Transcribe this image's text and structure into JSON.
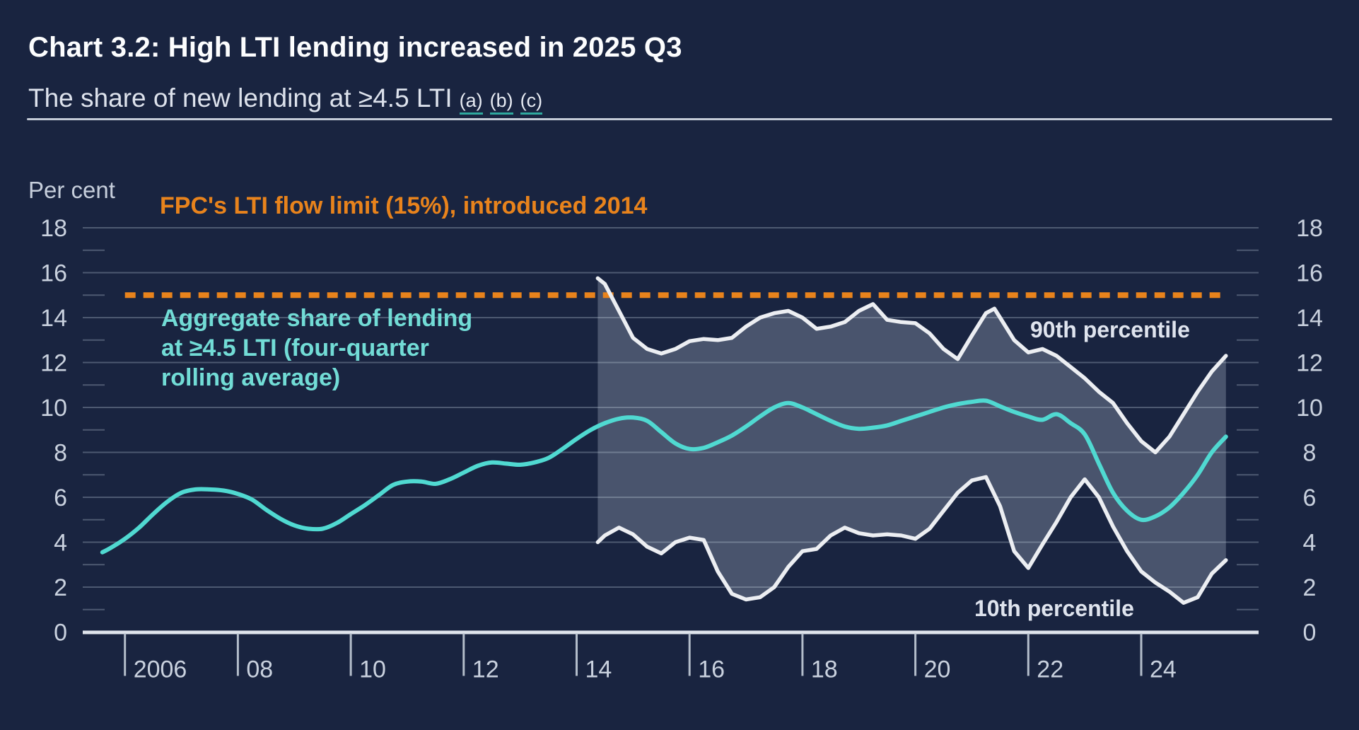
{
  "page": {
    "background": "#192440"
  },
  "header": {
    "title": "Chart 3.2: High LTI lending increased in 2025 Q3",
    "subtitle": "The share of new lending at ≥4.5 LTI",
    "footnotes": [
      {
        "label": "(a)"
      },
      {
        "label": "(b)"
      },
      {
        "label": "(c)"
      }
    ]
  },
  "chart_data": {
    "type": "line",
    "unit_label": "Per cent",
    "ylim": [
      0,
      18
    ],
    "y_ticks": [
      0,
      2,
      4,
      6,
      8,
      10,
      12,
      14,
      16,
      18
    ],
    "y_minor_ticks": [
      1,
      3,
      5,
      7,
      9,
      11,
      13,
      15,
      17
    ],
    "x_ticks": [
      {
        "year": 2006,
        "label": "2006"
      },
      {
        "year": 2008,
        "label": "08"
      },
      {
        "year": 2010,
        "label": "10"
      },
      {
        "year": 2012,
        "label": "12"
      },
      {
        "year": 2014,
        "label": "14"
      },
      {
        "year": 2016,
        "label": "16"
      },
      {
        "year": 2018,
        "label": "18"
      },
      {
        "year": 2020,
        "label": "20"
      },
      {
        "year": 2022,
        "label": "22"
      },
      {
        "year": 2024,
        "label": "24"
      }
    ],
    "x_range": [
      2005.25,
      2026.1
    ],
    "grid": true,
    "legend_position": "annotations-on-chart",
    "colors": {
      "background": "#192440",
      "gridline": "#4d5971",
      "baseline": "#dfe4ec",
      "tick": "#b3bdca",
      "axis_text": "#c9d1de",
      "band_fill": "rgba(214,224,240,0.26)",
      "aggregate": "#50d9d1",
      "percentile": "#eceef2",
      "limit": "#e8831c"
    },
    "limit_line": {
      "label": "FPC's LTI flow limit (15%), introduced 2014",
      "value": 15,
      "style": "dashed",
      "x_start": 2006.0,
      "x_end": 2025.5
    },
    "band": {
      "upper": "p90",
      "lower": "p10"
    },
    "series": [
      {
        "id": "aggregate",
        "name": "Aggregate share of lending at ≥4.5 LTI (four-quarter rolling average)",
        "annotation_lines": "Aggregate share of lending\nat ≥4.5 LTI (four-quarter\nrolling average)",
        "points": [
          [
            2005.6,
            3.55
          ],
          [
            2005.75,
            3.75
          ],
          [
            2006,
            4.15
          ],
          [
            2006.25,
            4.65
          ],
          [
            2006.5,
            5.25
          ],
          [
            2006.75,
            5.8
          ],
          [
            2007,
            6.2
          ],
          [
            2007.25,
            6.35
          ],
          [
            2007.5,
            6.35
          ],
          [
            2007.75,
            6.3
          ],
          [
            2008,
            6.15
          ],
          [
            2008.25,
            5.9
          ],
          [
            2008.5,
            5.45
          ],
          [
            2008.75,
            5.05
          ],
          [
            2009,
            4.75
          ],
          [
            2009.25,
            4.6
          ],
          [
            2009.5,
            4.6
          ],
          [
            2009.75,
            4.85
          ],
          [
            2010,
            5.25
          ],
          [
            2010.25,
            5.65
          ],
          [
            2010.5,
            6.1
          ],
          [
            2010.75,
            6.55
          ],
          [
            2011,
            6.7
          ],
          [
            2011.25,
            6.7
          ],
          [
            2011.5,
            6.6
          ],
          [
            2011.75,
            6.8
          ],
          [
            2012,
            7.1
          ],
          [
            2012.25,
            7.4
          ],
          [
            2012.5,
            7.55
          ],
          [
            2012.75,
            7.5
          ],
          [
            2013,
            7.45
          ],
          [
            2013.25,
            7.55
          ],
          [
            2013.5,
            7.75
          ],
          [
            2013.75,
            8.15
          ],
          [
            2014,
            8.6
          ],
          [
            2014.25,
            9.0
          ],
          [
            2014.5,
            9.3
          ],
          [
            2014.75,
            9.5
          ],
          [
            2015,
            9.55
          ],
          [
            2015.25,
            9.4
          ],
          [
            2015.5,
            8.9
          ],
          [
            2015.75,
            8.4
          ],
          [
            2016,
            8.15
          ],
          [
            2016.25,
            8.2
          ],
          [
            2016.5,
            8.45
          ],
          [
            2016.75,
            8.75
          ],
          [
            2017,
            9.15
          ],
          [
            2017.25,
            9.6
          ],
          [
            2017.5,
            10.0
          ],
          [
            2017.75,
            10.2
          ],
          [
            2018,
            10.0
          ],
          [
            2018.25,
            9.7
          ],
          [
            2018.5,
            9.4
          ],
          [
            2018.75,
            9.15
          ],
          [
            2019,
            9.05
          ],
          [
            2019.25,
            9.1
          ],
          [
            2019.5,
            9.2
          ],
          [
            2019.75,
            9.4
          ],
          [
            2020,
            9.6
          ],
          [
            2020.25,
            9.8
          ],
          [
            2020.5,
            10.0
          ],
          [
            2020.75,
            10.15
          ],
          [
            2021,
            10.25
          ],
          [
            2021.25,
            10.3
          ],
          [
            2021.5,
            10.05
          ],
          [
            2021.75,
            9.8
          ],
          [
            2022,
            9.6
          ],
          [
            2022.25,
            9.45
          ],
          [
            2022.5,
            9.7
          ],
          [
            2022.75,
            9.3
          ],
          [
            2023,
            8.8
          ],
          [
            2023.25,
            7.5
          ],
          [
            2023.5,
            6.2
          ],
          [
            2023.75,
            5.4
          ],
          [
            2024,
            5.0
          ],
          [
            2024.25,
            5.15
          ],
          [
            2024.5,
            5.55
          ],
          [
            2024.75,
            6.2
          ],
          [
            2025,
            7.0
          ],
          [
            2025.25,
            8.0
          ],
          [
            2025.5,
            8.7
          ]
        ]
      },
      {
        "id": "p90",
        "name": "90th percentile",
        "points": [
          [
            2014.375,
            15.75
          ],
          [
            2014.5,
            15.5
          ],
          [
            2014.75,
            14.3
          ],
          [
            2015,
            13.1
          ],
          [
            2015.25,
            12.6
          ],
          [
            2015.5,
            12.4
          ],
          [
            2015.75,
            12.6
          ],
          [
            2016,
            12.95
          ],
          [
            2016.25,
            13.05
          ],
          [
            2016.5,
            13.0
          ],
          [
            2016.75,
            13.1
          ],
          [
            2017,
            13.6
          ],
          [
            2017.25,
            14.0
          ],
          [
            2017.5,
            14.2
          ],
          [
            2017.75,
            14.3
          ],
          [
            2018,
            14.0
          ],
          [
            2018.25,
            13.5
          ],
          [
            2018.5,
            13.6
          ],
          [
            2018.75,
            13.8
          ],
          [
            2019,
            14.3
          ],
          [
            2019.25,
            14.6
          ],
          [
            2019.5,
            13.9
          ],
          [
            2019.75,
            13.8
          ],
          [
            2020,
            13.75
          ],
          [
            2020.25,
            13.3
          ],
          [
            2020.5,
            12.6
          ],
          [
            2020.75,
            12.15
          ],
          [
            2021,
            13.2
          ],
          [
            2021.25,
            14.2
          ],
          [
            2021.4,
            14.4
          ],
          [
            2021.5,
            14.0
          ],
          [
            2021.75,
            13.0
          ],
          [
            2022,
            12.45
          ],
          [
            2022.25,
            12.6
          ],
          [
            2022.5,
            12.3
          ],
          [
            2022.75,
            11.8
          ],
          [
            2023,
            11.3
          ],
          [
            2023.25,
            10.7
          ],
          [
            2023.5,
            10.2
          ],
          [
            2023.75,
            9.3
          ],
          [
            2024,
            8.5
          ],
          [
            2024.25,
            8.0
          ],
          [
            2024.5,
            8.7
          ],
          [
            2024.75,
            9.7
          ],
          [
            2025,
            10.7
          ],
          [
            2025.25,
            11.6
          ],
          [
            2025.5,
            12.3
          ]
        ]
      },
      {
        "id": "p10",
        "name": "10th percentile",
        "points": [
          [
            2014.375,
            4.0
          ],
          [
            2014.5,
            4.3
          ],
          [
            2014.75,
            4.65
          ],
          [
            2015,
            4.35
          ],
          [
            2015.25,
            3.8
          ],
          [
            2015.5,
            3.5
          ],
          [
            2015.75,
            4.0
          ],
          [
            2016,
            4.2
          ],
          [
            2016.25,
            4.1
          ],
          [
            2016.5,
            2.7
          ],
          [
            2016.75,
            1.7
          ],
          [
            2017,
            1.45
          ],
          [
            2017.25,
            1.55
          ],
          [
            2017.5,
            2.0
          ],
          [
            2017.75,
            2.9
          ],
          [
            2018,
            3.6
          ],
          [
            2018.25,
            3.7
          ],
          [
            2018.5,
            4.3
          ],
          [
            2018.75,
            4.65
          ],
          [
            2019,
            4.4
          ],
          [
            2019.25,
            4.3
          ],
          [
            2019.5,
            4.35
          ],
          [
            2019.75,
            4.3
          ],
          [
            2020,
            4.15
          ],
          [
            2020.25,
            4.6
          ],
          [
            2020.5,
            5.4
          ],
          [
            2020.75,
            6.2
          ],
          [
            2021,
            6.75
          ],
          [
            2021.25,
            6.9
          ],
          [
            2021.5,
            5.6
          ],
          [
            2021.75,
            3.6
          ],
          [
            2022,
            2.85
          ],
          [
            2022.25,
            3.9
          ],
          [
            2022.5,
            4.9
          ],
          [
            2022.75,
            6.0
          ],
          [
            2023,
            6.8
          ],
          [
            2023.25,
            6.0
          ],
          [
            2023.5,
            4.7
          ],
          [
            2023.75,
            3.6
          ],
          [
            2024,
            2.7
          ],
          [
            2024.25,
            2.2
          ],
          [
            2024.5,
            1.8
          ],
          [
            2024.75,
            1.3
          ],
          [
            2025,
            1.55
          ],
          [
            2025.25,
            2.6
          ],
          [
            2025.5,
            3.2
          ]
        ]
      }
    ]
  }
}
